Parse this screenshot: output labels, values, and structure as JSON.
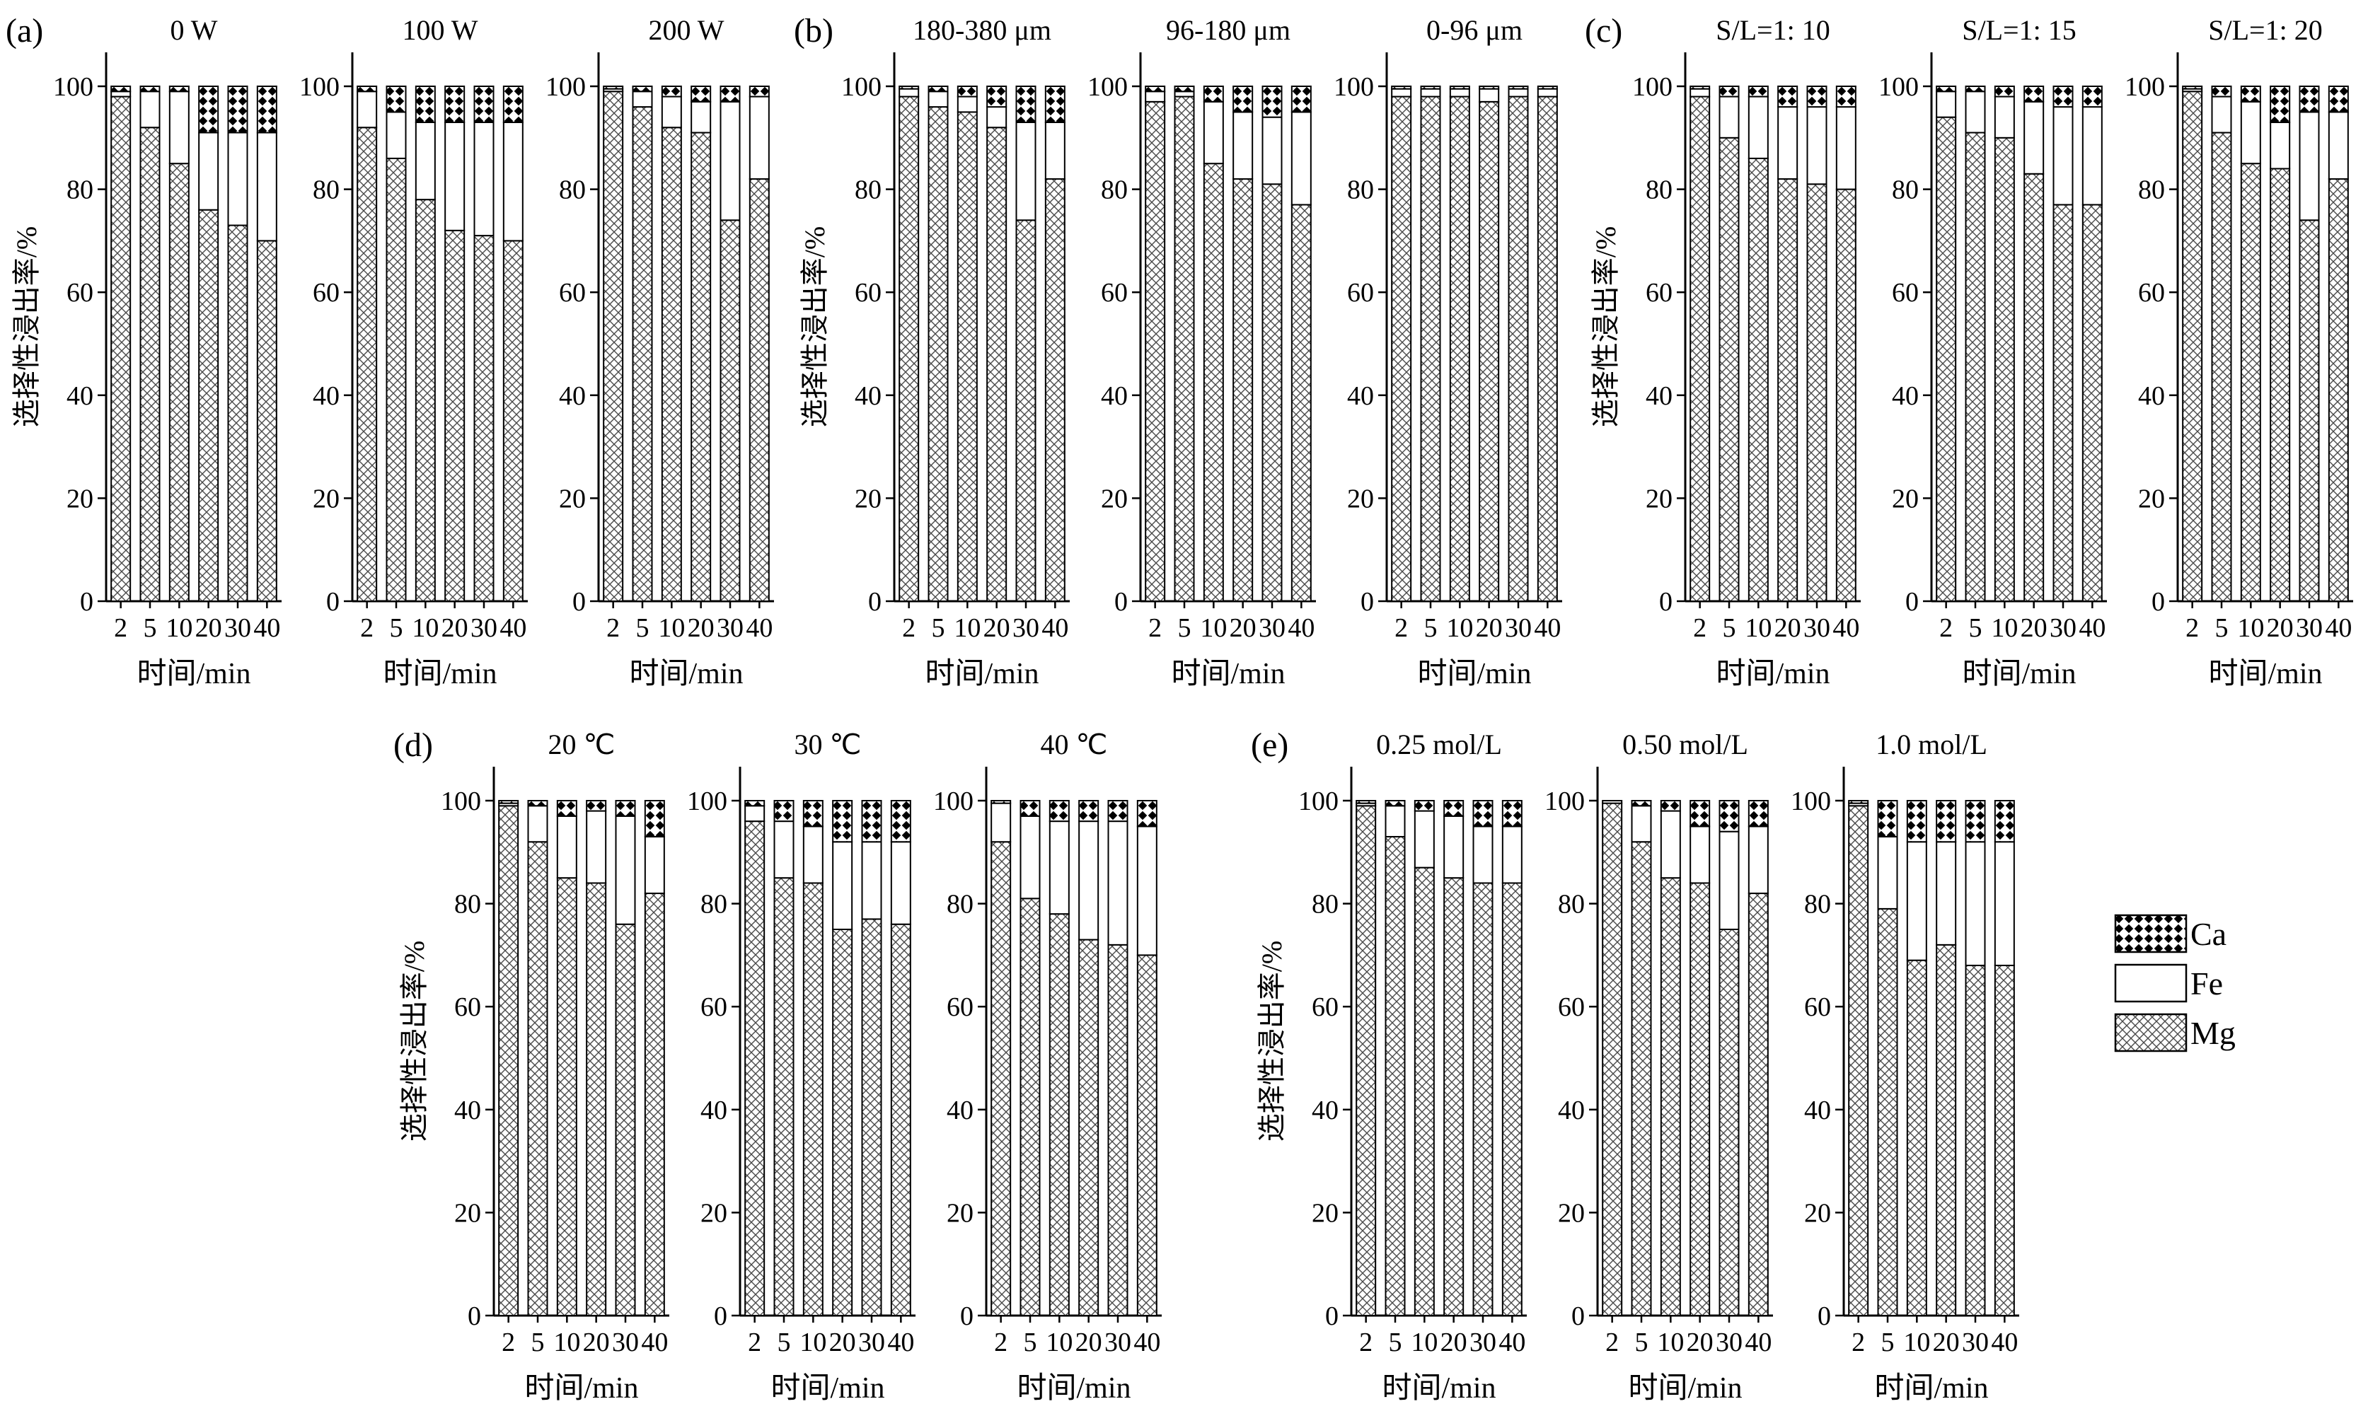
{
  "figure": {
    "background": "#ffffff",
    "axis_color": "#000000",
    "legend": {
      "items": [
        {
          "label": "Ca",
          "pattern": "diamond"
        },
        {
          "label": "Fe",
          "pattern": "plain"
        },
        {
          "label": "Mg",
          "pattern": "cross"
        }
      ]
    }
  },
  "chart_data": {
    "type": "bar",
    "stacked": true,
    "grid": false,
    "categories": [
      "2",
      "5",
      "10",
      "20",
      "30",
      "40"
    ],
    "xlabel": "时间/min",
    "ylabel": "选择性浸出率/%",
    "ylim": [
      0,
      100
    ],
    "yticks": [
      0,
      20,
      40,
      60,
      80,
      100
    ],
    "legend_position": "right-middle",
    "series_order": [
      "Mg",
      "Fe",
      "Ca"
    ],
    "panels": [
      {
        "letter": "(a)",
        "subplots": [
          {
            "title": "0 W",
            "series": {
              "Mg": [
                98,
                92,
                85,
                76,
                73,
                70
              ],
              "Fe": [
                1,
                7,
                14,
                15,
                18,
                21
              ],
              "Ca": [
                1,
                1,
                1,
                9,
                9,
                9
              ]
            }
          },
          {
            "title": "100 W",
            "series": {
              "Mg": [
                92,
                86,
                78,
                72,
                71,
                70
              ],
              "Fe": [
                7,
                9,
                15,
                21,
                22,
                23
              ],
              "Ca": [
                1,
                5,
                7,
                7,
                7,
                7
              ]
            }
          },
          {
            "title": "200 W",
            "series": {
              "Mg": [
                99,
                96,
                92,
                91,
                74,
                82
              ],
              "Fe": [
                0.5,
                3,
                6,
                6,
                23,
                16
              ],
              "Ca": [
                0.5,
                1,
                2,
                3,
                3,
                2
              ]
            }
          }
        ]
      },
      {
        "letter": "(b)",
        "subplots": [
          {
            "title": "180-380 μm",
            "series": {
              "Mg": [
                98,
                96,
                95,
                92,
                74,
                82
              ],
              "Fe": [
                1.5,
                3,
                3,
                4,
                19,
                11
              ],
              "Ca": [
                0.5,
                1,
                2,
                4,
                7,
                7
              ]
            }
          },
          {
            "title": "96-180 μm",
            "series": {
              "Mg": [
                97,
                98,
                85,
                82,
                81,
                77
              ],
              "Fe": [
                2,
                1,
                12,
                13,
                13,
                18
              ],
              "Ca": [
                1,
                1,
                3,
                5,
                6,
                5
              ]
            }
          },
          {
            "title": "0-96 μm",
            "series": {
              "Mg": [
                98,
                98,
                98,
                97,
                98,
                98
              ],
              "Fe": [
                1.5,
                1.5,
                1.5,
                2.5,
                1.5,
                1.5
              ],
              "Ca": [
                0.5,
                0.5,
                0.5,
                0.5,
                0.5,
                0.5
              ]
            }
          }
        ]
      },
      {
        "letter": "(c)",
        "subplots": [
          {
            "title": "S/L=1: 10",
            "series": {
              "Mg": [
                98,
                90,
                86,
                82,
                81,
                80
              ],
              "Fe": [
                1.5,
                8,
                12,
                14,
                15,
                16
              ],
              "Ca": [
                0.5,
                2,
                2,
                4,
                4,
                4
              ]
            }
          },
          {
            "title": "S/L=1: 15",
            "series": {
              "Mg": [
                94,
                91,
                90,
                83,
                77,
                77
              ],
              "Fe": [
                5,
                8,
                8,
                14,
                19,
                19
              ],
              "Ca": [
                1,
                1,
                2,
                3,
                4,
                4
              ]
            }
          },
          {
            "title": "S/L=1: 20",
            "series": {
              "Mg": [
                99,
                91,
                85,
                84,
                74,
                82
              ],
              "Fe": [
                0.5,
                7,
                12,
                9,
                21,
                13
              ],
              "Ca": [
                0.5,
                2,
                3,
                7,
                5,
                5
              ]
            }
          }
        ]
      },
      {
        "letter": "(d)",
        "subplots": [
          {
            "title": "20 ℃",
            "series": {
              "Mg": [
                99,
                92,
                85,
                84,
                76,
                82
              ],
              "Fe": [
                0.5,
                7,
                12,
                14,
                21,
                11
              ],
              "Ca": [
                0.5,
                1,
                3,
                2,
                3,
                7
              ]
            }
          },
          {
            "title": "30 ℃",
            "series": {
              "Mg": [
                96,
                85,
                84,
                75,
                77,
                76
              ],
              "Fe": [
                3,
                11,
                11,
                17,
                15,
                16
              ],
              "Ca": [
                1,
                4,
                5,
                8,
                8,
                8
              ]
            }
          },
          {
            "title": "40 ℃",
            "series": {
              "Mg": [
                92,
                81,
                78,
                73,
                72,
                70
              ],
              "Fe": [
                7.5,
                16,
                18,
                23,
                24,
                25
              ],
              "Ca": [
                0.5,
                3,
                4,
                4,
                4,
                5
              ]
            }
          }
        ]
      },
      {
        "letter": "(e)",
        "subplots": [
          {
            "title": "0.25 mol/L",
            "series": {
              "Mg": [
                99,
                93,
                87,
                85,
                84,
                84
              ],
              "Fe": [
                0.5,
                6,
                11,
                12,
                11,
                11
              ],
              "Ca": [
                0.5,
                1,
                2,
                3,
                5,
                5
              ]
            }
          },
          {
            "title": "0.50 mol/L",
            "series": {
              "Mg": [
                99.5,
                92,
                85,
                84,
                75,
                82
              ],
              "Fe": [
                0.5,
                7,
                13,
                11,
                19,
                13
              ],
              "Ca": [
                0,
                1,
                2,
                5,
                6,
                5
              ]
            }
          },
          {
            "title": "1.0 mol/L",
            "series": {
              "Mg": [
                99,
                79,
                69,
                72,
                68,
                68
              ],
              "Fe": [
                0.5,
                14,
                23,
                20,
                24,
                24
              ],
              "Ca": [
                0.5,
                7,
                8,
                8,
                8,
                8
              ]
            }
          }
        ]
      }
    ]
  }
}
